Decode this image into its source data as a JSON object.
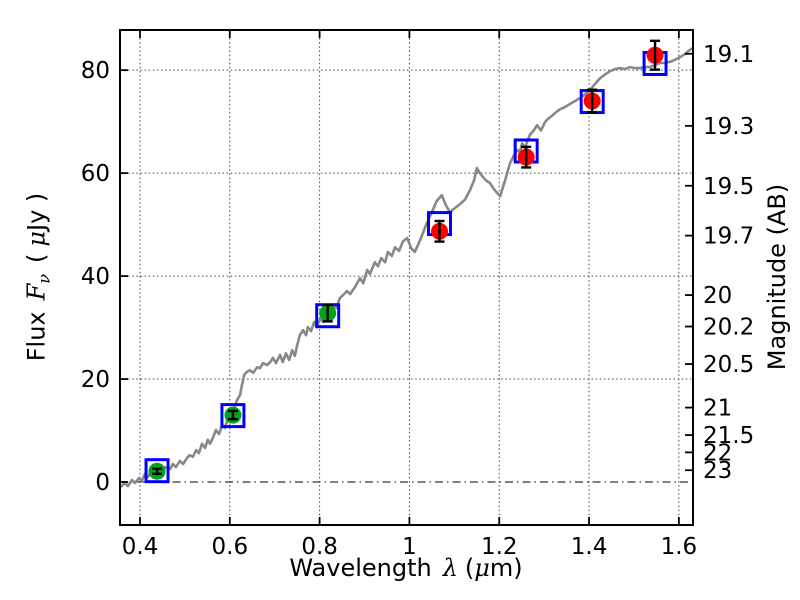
{
  "figure": {
    "background": "#ffffff",
    "axes": {
      "xlabel": {
        "prefix": "Wavelength",
        "symbol": "λ",
        "unit_open": "(",
        "unit_symbol": "μ",
        "unit_close": "m)"
      },
      "ylabel_left": {
        "prefix": "Flux",
        "symbol": "F",
        "subscript": "ν",
        "unit_open": "(",
        "unit_symbol": "μ",
        "unit_close": "Jy )"
      },
      "ylabel_right": "Magnitude (AB)"
    }
  },
  "chart_data": {
    "type": "line",
    "title": "",
    "xlabel": "Wavelength λ (μm)",
    "ylabel": "Flux Fν (μJy)",
    "ylabel_right": "Magnitude (AB)",
    "xlim": [
      0.3555,
      1.6315
    ],
    "ylim": [
      -8.35,
      87.8
    ],
    "grid": true,
    "ab_zeropoint": 23.9,
    "x_ticks": {
      "values": [
        0.4,
        0.6,
        0.8,
        1.0,
        1.2,
        1.4,
        1.6
      ],
      "labels": [
        "0.4",
        "0.6",
        "0.8",
        "1",
        "1.2",
        "1.4",
        "1.6"
      ]
    },
    "y_ticks_left": {
      "values": [
        0,
        20,
        40,
        60,
        80
      ],
      "labels": [
        "0",
        "20",
        "40",
        "60",
        "80"
      ]
    },
    "y_ticks_right": {
      "magnitudes": [
        19.1,
        19.3,
        19.5,
        19.7,
        20,
        20.2,
        20.5,
        21,
        21.5,
        22,
        23
      ],
      "labels": [
        "19.1",
        "19.3",
        "19.5",
        "19.7",
        "20",
        "20.2",
        "20.5",
        "21",
        "21.5",
        "22",
        "23"
      ]
    },
    "zero_line": {
      "y": 0,
      "style": "dash-dot"
    },
    "colors": {
      "spectrum": "#888888",
      "model_square": "#0000ff",
      "optical_point": "#00a317",
      "infrared_point": "#ff0000",
      "errorbar": "#000000",
      "grid": "#444444",
      "frame": "#000000",
      "zero_line": "#000000"
    },
    "series": [
      {
        "name": "model_spectrum",
        "type": "line",
        "points": [
          [
            0.356,
            -1.0
          ],
          [
            0.367,
            -0.2
          ],
          [
            0.373,
            -0.8
          ],
          [
            0.382,
            0.4
          ],
          [
            0.389,
            -0.2
          ],
          [
            0.398,
            0.8
          ],
          [
            0.404,
            0.2
          ],
          [
            0.411,
            1.6
          ],
          [
            0.418,
            1.0
          ],
          [
            0.425,
            2.1
          ],
          [
            0.433,
            1.6
          ],
          [
            0.44,
            2.5
          ],
          [
            0.447,
            1.9
          ],
          [
            0.456,
            2.9
          ],
          [
            0.467,
            2.5
          ],
          [
            0.473,
            3.5
          ],
          [
            0.48,
            2.9
          ],
          [
            0.489,
            4.1
          ],
          [
            0.496,
            3.5
          ],
          [
            0.505,
            4.7
          ],
          [
            0.511,
            5.2
          ],
          [
            0.518,
            4.9
          ],
          [
            0.525,
            6.2
          ],
          [
            0.531,
            5.6
          ],
          [
            0.538,
            7.4
          ],
          [
            0.545,
            6.6
          ],
          [
            0.551,
            8.2
          ],
          [
            0.556,
            7.4
          ],
          [
            0.563,
            8.7
          ],
          [
            0.569,
            10.1
          ],
          [
            0.576,
            9.3
          ],
          [
            0.583,
            11.1
          ],
          [
            0.589,
            10.5
          ],
          [
            0.596,
            12.4
          ],
          [
            0.6,
            11.8
          ],
          [
            0.607,
            13.4
          ],
          [
            0.616,
            15.9
          ],
          [
            0.623,
            16.9
          ],
          [
            0.627,
            18.8
          ],
          [
            0.632,
            20.8
          ],
          [
            0.638,
            21.4
          ],
          [
            0.645,
            21.7
          ],
          [
            0.652,
            21.2
          ],
          [
            0.661,
            22.3
          ],
          [
            0.667,
            22.1
          ],
          [
            0.674,
            23.1
          ],
          [
            0.683,
            22.7
          ],
          [
            0.69,
            23.3
          ],
          [
            0.696,
            24.1
          ],
          [
            0.703,
            23.1
          ],
          [
            0.712,
            24.7
          ],
          [
            0.718,
            23.3
          ],
          [
            0.725,
            25.0
          ],
          [
            0.732,
            23.7
          ],
          [
            0.739,
            25.6
          ],
          [
            0.745,
            24.5
          ],
          [
            0.75,
            26.6
          ],
          [
            0.756,
            28.5
          ],
          [
            0.763,
            29.5
          ],
          [
            0.77,
            28.5
          ],
          [
            0.774,
            30.1
          ],
          [
            0.781,
            29.3
          ],
          [
            0.788,
            31.1
          ],
          [
            0.794,
            30.1
          ],
          [
            0.801,
            31.8
          ],
          [
            0.808,
            31.1
          ],
          [
            0.814,
            32.4
          ],
          [
            0.823,
            33.6
          ],
          [
            0.83,
            34.4
          ],
          [
            0.837,
            33.8
          ],
          [
            0.845,
            35.7
          ],
          [
            0.852,
            36.3
          ],
          [
            0.861,
            37.1
          ],
          [
            0.868,
            36.5
          ],
          [
            0.879,
            37.9
          ],
          [
            0.89,
            39.6
          ],
          [
            0.897,
            38.6
          ],
          [
            0.906,
            41.2
          ],
          [
            0.912,
            40.4
          ],
          [
            0.923,
            42.7
          ],
          [
            0.93,
            41.9
          ],
          [
            0.937,
            43.5
          ],
          [
            0.946,
            42.7
          ],
          [
            0.952,
            44.7
          ],
          [
            0.961,
            43.9
          ],
          [
            0.968,
            45.6
          ],
          [
            0.977,
            44.9
          ],
          [
            0.986,
            46.8
          ],
          [
            0.995,
            47.4
          ],
          [
            1.004,
            45.4
          ],
          [
            1.012,
            44.7
          ],
          [
            1.024,
            47.0
          ],
          [
            1.037,
            49.9
          ],
          [
            1.05,
            52.4
          ],
          [
            1.061,
            54.6
          ],
          [
            1.072,
            55.7
          ],
          [
            1.081,
            53.8
          ],
          [
            1.09,
            52.4
          ],
          [
            1.101,
            53.2
          ],
          [
            1.113,
            54.0
          ],
          [
            1.124,
            54.9
          ],
          [
            1.135,
            56.7
          ],
          [
            1.144,
            58.6
          ],
          [
            1.15,
            61.0
          ],
          [
            1.157,
            60.0
          ],
          [
            1.164,
            59.2
          ],
          [
            1.173,
            58.4
          ],
          [
            1.179,
            58.1
          ],
          [
            1.19,
            56.7
          ],
          [
            1.202,
            55.5
          ],
          [
            1.213,
            58.6
          ],
          [
            1.224,
            61.9
          ],
          [
            1.233,
            63.5
          ],
          [
            1.24,
            64.5
          ],
          [
            1.246,
            64.1
          ],
          [
            1.251,
            65.8
          ],
          [
            1.257,
            64.9
          ],
          [
            1.268,
            67.4
          ],
          [
            1.277,
            68.3
          ],
          [
            1.284,
            69.3
          ],
          [
            1.293,
            68.3
          ],
          [
            1.302,
            69.9
          ],
          [
            1.308,
            70.5
          ],
          [
            1.317,
            71.1
          ],
          [
            1.326,
            71.8
          ],
          [
            1.335,
            72.4
          ],
          [
            1.346,
            72.8
          ],
          [
            1.357,
            73.4
          ],
          [
            1.369,
            74.0
          ],
          [
            1.38,
            74.6
          ],
          [
            1.391,
            75.3
          ],
          [
            1.402,
            76.1
          ],
          [
            1.413,
            77.3
          ],
          [
            1.424,
            78.4
          ],
          [
            1.436,
            79.2
          ],
          [
            1.447,
            79.8
          ],
          [
            1.458,
            80.2
          ],
          [
            1.469,
            80.4
          ],
          [
            1.48,
            80.2
          ],
          [
            1.491,
            80.6
          ],
          [
            1.502,
            80.4
          ],
          [
            1.513,
            80.4
          ],
          [
            1.524,
            80.6
          ],
          [
            1.535,
            80.6
          ],
          [
            1.547,
            81.0
          ],
          [
            1.558,
            81.4
          ],
          [
            1.569,
            81.4
          ],
          [
            1.58,
            81.6
          ],
          [
            1.591,
            82.0
          ],
          [
            1.602,
            82.5
          ],
          [
            1.613,
            83.1
          ],
          [
            1.624,
            83.9
          ],
          [
            1.631,
            84.3
          ]
        ]
      },
      {
        "name": "model_photometry",
        "type": "scatter_open_square",
        "points": [
          {
            "x": 0.438,
            "y": 2.2
          },
          {
            "x": 0.607,
            "y": 12.9
          },
          {
            "x": 0.818,
            "y": 32.3
          },
          {
            "x": 1.067,
            "y": 50.2
          },
          {
            "x": 1.26,
            "y": 64.3
          },
          {
            "x": 1.407,
            "y": 73.9
          },
          {
            "x": 1.547,
            "y": 81.3
          }
        ]
      },
      {
        "name": "observed_optical",
        "type": "scatter_circle_errorbar",
        "points": [
          {
            "x": 0.438,
            "y": 2.1,
            "yerr": 0.5
          },
          {
            "x": 0.607,
            "y": 13.0,
            "yerr": 0.8
          },
          {
            "x": 0.818,
            "y": 32.8,
            "yerr": 1.6
          }
        ]
      },
      {
        "name": "observed_nir",
        "type": "scatter_circle_errorbar",
        "points": [
          {
            "x": 1.067,
            "y": 48.7,
            "yerr": 2.0
          },
          {
            "x": 1.26,
            "y": 63.1,
            "yerr": 2.0
          },
          {
            "x": 1.407,
            "y": 74.0,
            "yerr": 2.2
          },
          {
            "x": 1.547,
            "y": 82.9,
            "yerr": 2.8
          }
        ]
      }
    ]
  }
}
